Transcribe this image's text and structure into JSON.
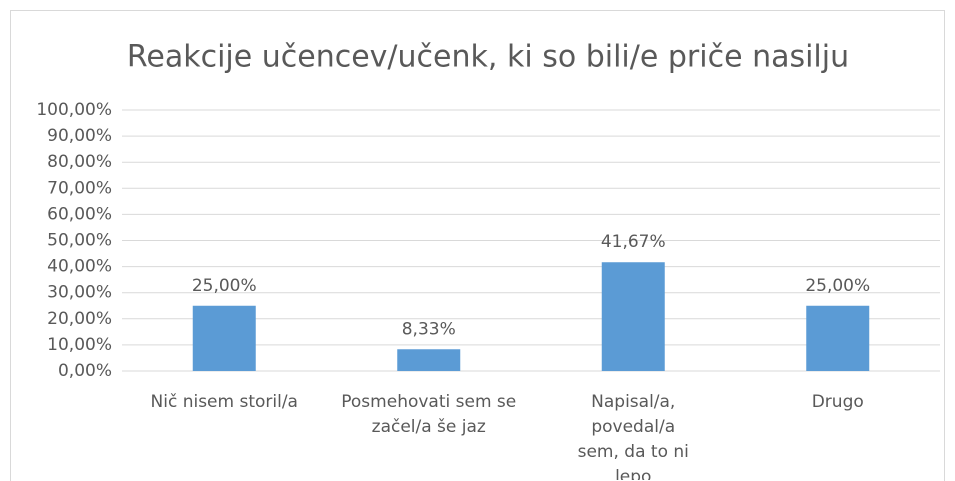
{
  "chart_data": {
    "type": "bar",
    "title": "Reakcije učencev/učenk, ki so bili/e priče nasilju",
    "categories": [
      "Nič nisem storil/a",
      "Posmehovati sem se začel/a še jaz",
      "Napisal/a, povedal/a sem, da to ni lepo",
      "Drugo"
    ],
    "values": [
      25,
      8.33,
      41.67,
      25
    ],
    "value_labels": [
      "25,00%",
      "8,33%",
      "41,67%",
      "25,00%"
    ],
    "color": "#5b9bd5",
    "ylim": [
      0,
      100
    ],
    "yticks": [
      {
        "value": 0,
        "label": "0,00%"
      },
      {
        "value": 10,
        "label": "10,00%"
      },
      {
        "value": 20,
        "label": "20,00%"
      },
      {
        "value": 30,
        "label": "30,00%"
      },
      {
        "value": 40,
        "label": "40,00%"
      },
      {
        "value": 50,
        "label": "50,00%"
      },
      {
        "value": 60,
        "label": "60,00%"
      },
      {
        "value": 70,
        "label": "70,00%"
      },
      {
        "value": 80,
        "label": "80,00%"
      },
      {
        "value": 90,
        "label": "90,00%"
      },
      {
        "value": 100,
        "label": "100,00%"
      }
    ],
    "grid": true
  }
}
